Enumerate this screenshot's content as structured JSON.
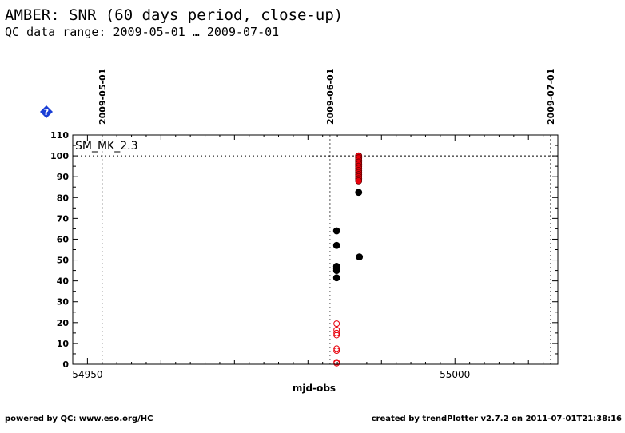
{
  "header": {
    "title": "AMBER: SNR (60 days period, close-up)",
    "subtitle": "QC data range: 2009-05-01 … 2009-07-01"
  },
  "footer": {
    "left": "powered by QC: www.eso.org/HC",
    "right": "created by trendPlotter v2.7.2 on 2011-07-01T21:38:16"
  },
  "icons": {
    "help": "help-diamond-icon",
    "help_color": "#1a3fd6"
  },
  "chart_data": {
    "type": "scatter",
    "xlabel": "mjd-obs",
    "ylabel": "",
    "xlim": [
      54948,
      55014
    ],
    "ylim": [
      0,
      110
    ],
    "x_ticks": [
      54950,
      55000
    ],
    "y_ticks": [
      0,
      10,
      20,
      30,
      40,
      50,
      60,
      70,
      80,
      90,
      100,
      110
    ],
    "date_markers": [
      {
        "label": "2009-05-01",
        "x": 54952
      },
      {
        "label": "2009-06-01",
        "x": 54983
      },
      {
        "label": "2009-07-01",
        "x": 55013
      }
    ],
    "reference_line": {
      "y": 100,
      "style": "dotted"
    },
    "annotation": "SM_MK_2.3",
    "series": [
      {
        "marker": "filled-circle",
        "color": "#000000",
        "x": [
          54983.9,
          54983.9,
          54983.9,
          54983.9,
          54983.9,
          54983.9,
          54986.9,
          54987.0
        ],
        "y": [
          64,
          57,
          47,
          46,
          45,
          41.5,
          82.5,
          51.5
        ]
      },
      {
        "marker": "filled-circle",
        "color": "#e8000b",
        "x": [
          54986.9,
          54986.9,
          54986.9,
          54986.9,
          54986.9,
          54986.9,
          54986.9,
          54986.9,
          54986.9,
          54986.9,
          54986.9,
          54986.9,
          54986.9
        ],
        "y": [
          100,
          99,
          98,
          97,
          96,
          95,
          94,
          93,
          92,
          91,
          90,
          89,
          88
        ]
      },
      {
        "marker": "open-circle",
        "color": "#e8000b",
        "x": [
          54983.9,
          54983.9,
          54983.9,
          54983.9,
          54983.9,
          54983.9,
          54983.9,
          54983.9
        ],
        "y": [
          19.5,
          16.5,
          15,
          14,
          7.5,
          6.5,
          1,
          0.5
        ]
      }
    ]
  }
}
